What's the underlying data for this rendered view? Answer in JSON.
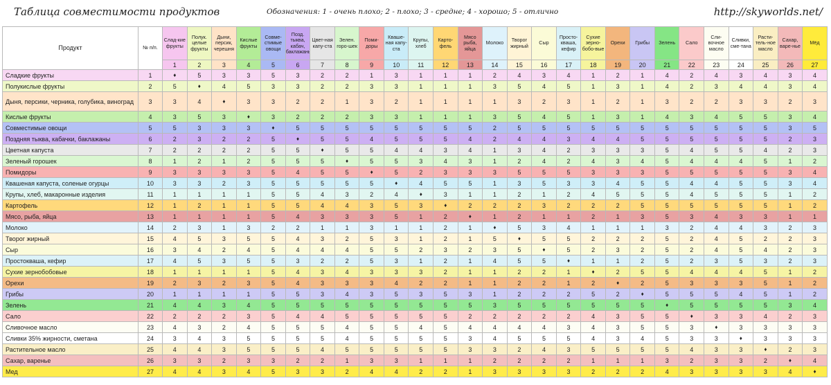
{
  "header": {
    "title": "Таблица совместимости продуктов",
    "legend": "Обозначения: 1 - очень плохо; 2 - плохо; 3 - средне; 4 - хорошо; 5 - отлично",
    "url": "http://skyworlds.net/"
  },
  "table": {
    "product_header": "Продукт",
    "num_header": "№ п/п.",
    "columns": [
      {
        "label": "Слад-кие фрукты",
        "num": "1",
        "color": "#f6c6ef"
      },
      {
        "label": "Полук. целые фрукты",
        "num": "2",
        "color": "#eef7c2"
      },
      {
        "label": "Дыни, персик, черешня",
        "num": "3",
        "color": "#ffe3c7"
      },
      {
        "label": "Кислые фрукты",
        "num": "4",
        "color": "#b3ec97"
      },
      {
        "label": "Совме-стимые овощи",
        "num": "5",
        "color": "#aab9f4"
      },
      {
        "label": "Позд. тыква, кабач, баклажаны",
        "num": "6",
        "color": "#c8a7f2"
      },
      {
        "label": "Цвет-ная капу-ста",
        "num": "7",
        "color": "#e6e6e6"
      },
      {
        "label": "Зелен. горо-шек",
        "num": "8",
        "color": "#d7f6cd"
      },
      {
        "label": "Поми-доры",
        "num": "9",
        "color": "#f7a8a8"
      },
      {
        "label": "Кваше-ная капу-ста",
        "num": "10",
        "color": "#c9ecf8"
      },
      {
        "label": "Крупы, хлеб",
        "num": "11",
        "color": "#ddf5f0"
      },
      {
        "label": "Карто-фель",
        "num": "12",
        "color": "#ffd774"
      },
      {
        "label": "Мясо рыба, яйца",
        "num": "13",
        "color": "#e49797"
      },
      {
        "label": "Молоко",
        "num": "14",
        "color": "#def2fb"
      },
      {
        "label": "Творог жирный",
        "num": "15",
        "color": "#fff4d6"
      },
      {
        "label": "Сыр",
        "num": "16",
        "color": "#fbfbd7"
      },
      {
        "label": "Просто-кваша, кефир",
        "num": "17",
        "color": "#d9f1f7"
      },
      {
        "label": "Сухие зерно-бобо-вые",
        "num": "18",
        "color": "#f6f49d"
      },
      {
        "label": "Орехи",
        "num": "19",
        "color": "#f3b67d"
      },
      {
        "label": "Грибы",
        "num": "20",
        "color": "#c9c6f4"
      },
      {
        "label": "Зелень",
        "num": "21",
        "color": "#85e585"
      },
      {
        "label": "Сало",
        "num": "22",
        "color": "#fbcaca"
      },
      {
        "label": "Сли-вочное масло",
        "num": "23",
        "color": "#fdfdf2"
      },
      {
        "label": "Сливки, сме-тана",
        "num": "24",
        "color": "#ffffff"
      },
      {
        "label": "Расти-тель-ное масло",
        "num": "25",
        "color": "#faeec3"
      },
      {
        "label": "Сахар, варе-нье",
        "num": "26",
        "color": "#f3b9b9"
      },
      {
        "label": "Мёд",
        "num": "27",
        "color": "#ffeb3b"
      }
    ],
    "rows": [
      {
        "name": "Сладкие фрукты",
        "num": "1",
        "color": "#f8d8f3",
        "vals": [
          "♦",
          "5",
          "3",
          "3",
          "5",
          "3",
          "2",
          "2",
          "1",
          "3",
          "1",
          "1",
          "1",
          "2",
          "4",
          "3",
          "4",
          "1",
          "2",
          "1",
          "4",
          "2",
          "4",
          "3",
          "4",
          "3",
          "4"
        ]
      },
      {
        "name": "Полукислые фрукты",
        "num": "2",
        "color": "#eff8c8",
        "vals": [
          "5",
          "♦",
          "4",
          "5",
          "3",
          "3",
          "2",
          "2",
          "3",
          "3",
          "1",
          "1",
          "1",
          "3",
          "5",
          "4",
          "5",
          "1",
          "3",
          "1",
          "4",
          "2",
          "3",
          "4",
          "4",
          "3",
          "4"
        ]
      },
      {
        "name": "Дыня, персики, черника, голубика, виноград",
        "num": "3",
        "color": "#ffe4c9",
        "vals": [
          "3",
          "4",
          "♦",
          "3",
          "3",
          "2",
          "2",
          "1",
          "3",
          "2",
          "1",
          "1",
          "1",
          "1",
          "3",
          "2",
          "3",
          "1",
          "2",
          "1",
          "3",
          "2",
          "2",
          "3",
          "3",
          "2",
          "3"
        ],
        "tall": true
      },
      {
        "name": "Кислые фрукты",
        "num": "4",
        "color": "#c5efad",
        "vals": [
          "3",
          "5",
          "3",
          "♦",
          "3",
          "2",
          "2",
          "2",
          "3",
          "3",
          "1",
          "1",
          "1",
          "3",
          "5",
          "4",
          "5",
          "1",
          "3",
          "1",
          "4",
          "3",
          "4",
          "5",
          "5",
          "3",
          "4"
        ]
      },
      {
        "name": "Совместимые овощи",
        "num": "5",
        "color": "#b4c1f5",
        "vals": [
          "5",
          "3",
          "3",
          "3",
          "♦",
          "5",
          "5",
          "5",
          "5",
          "5",
          "5",
          "5",
          "5",
          "2",
          "5",
          "5",
          "5",
          "5",
          "5",
          "5",
          "5",
          "5",
          "5",
          "5",
          "5",
          "3",
          "5"
        ]
      },
      {
        "name": "Поздняя тыква, кабачки, баклажаны",
        "num": "6",
        "color": "#cdb0f3",
        "vals": [
          "2",
          "3",
          "2",
          "2",
          "5",
          "♦",
          "5",
          "5",
          "4",
          "5",
          "5",
          "5",
          "4",
          "2",
          "4",
          "4",
          "3",
          "4",
          "4",
          "5",
          "5",
          "5",
          "5",
          "5",
          "5",
          "2",
          "3"
        ]
      },
      {
        "name": "Цветная капуста",
        "num": "7",
        "color": "#e9e9e9",
        "vals": [
          "2",
          "2",
          "2",
          "2",
          "5",
          "5",
          "♦",
          "5",
          "5",
          "4",
          "4",
          "3",
          "4",
          "1",
          "3",
          "4",
          "2",
          "3",
          "3",
          "3",
          "5",
          "4",
          "5",
          "5",
          "4",
          "2",
          "3"
        ]
      },
      {
        "name": "Зеленый горошек",
        "num": "8",
        "color": "#daf6d1",
        "vals": [
          "1",
          "2",
          "1",
          "2",
          "5",
          "5",
          "5",
          "♦",
          "5",
          "5",
          "3",
          "4",
          "3",
          "1",
          "2",
          "4",
          "2",
          "4",
          "3",
          "4",
          "5",
          "4",
          "4",
          "4",
          "5",
          "1",
          "2"
        ]
      },
      {
        "name": "Помидоры",
        "num": "9",
        "color": "#f8b2b2",
        "vals": [
          "3",
          "3",
          "3",
          "3",
          "5",
          "4",
          "5",
          "5",
          "♦",
          "5",
          "2",
          "3",
          "3",
          "3",
          "5",
          "5",
          "5",
          "3",
          "3",
          "3",
          "5",
          "5",
          "5",
          "5",
          "5",
          "3",
          "4"
        ]
      },
      {
        "name": "Квашеная капуста, соленые огурцы",
        "num": "10",
        "color": "#cfeef8",
        "vals": [
          "3",
          "3",
          "2",
          "3",
          "5",
          "5",
          "5",
          "5",
          "5",
          "♦",
          "4",
          "5",
          "5",
          "1",
          "3",
          "5",
          "3",
          "3",
          "4",
          "5",
          "5",
          "4",
          "4",
          "5",
          "5",
          "3",
          "4"
        ]
      },
      {
        "name": "Крупы, хлеб, макаронные изделия",
        "num": "11",
        "color": "#e1f6f1",
        "vals": [
          "1",
          "1",
          "1",
          "1",
          "5",
          "5",
          "4",
          "3",
          "2",
          "4",
          "♦",
          "3",
          "1",
          "1",
          "2",
          "1",
          "2",
          "4",
          "5",
          "5",
          "5",
          "4",
          "5",
          "5",
          "5",
          "1",
          "2"
        ]
      },
      {
        "name": "Картофель",
        "num": "12",
        "color": "#ffd97c",
        "vals": [
          "1",
          "2",
          "1",
          "1",
          "5",
          "5",
          "4",
          "4",
          "3",
          "5",
          "3",
          "♦",
          "2",
          "2",
          "2",
          "3",
          "2",
          "2",
          "2",
          "5",
          "5",
          "5",
          "5",
          "5",
          "5",
          "1",
          "2"
        ]
      },
      {
        "name": "Мясо, рыба, яйца",
        "num": "13",
        "color": "#e8a2a2",
        "vals": [
          "1",
          "1",
          "1",
          "1",
          "5",
          "4",
          "3",
          "3",
          "3",
          "5",
          "1",
          "2",
          "♦",
          "1",
          "2",
          "1",
          "1",
          "2",
          "1",
          "3",
          "5",
          "3",
          "4",
          "3",
          "3",
          "1",
          "1"
        ]
      },
      {
        "name": "Молоко",
        "num": "14",
        "color": "#e2f3fb",
        "vals": [
          "2",
          "3",
          "1",
          "3",
          "2",
          "2",
          "1",
          "1",
          "3",
          "1",
          "1",
          "2",
          "1",
          "♦",
          "5",
          "3",
          "4",
          "1",
          "1",
          "1",
          "3",
          "2",
          "4",
          "4",
          "3",
          "2",
          "3"
        ]
      },
      {
        "name": "Творог жирный",
        "num": "15",
        "color": "#fff5da",
        "vals": [
          "4",
          "5",
          "3",
          "5",
          "5",
          "4",
          "3",
          "2",
          "5",
          "3",
          "1",
          "2",
          "1",
          "5",
          "♦",
          "5",
          "5",
          "2",
          "2",
          "2",
          "5",
          "2",
          "4",
          "5",
          "2",
          "2",
          "3"
        ]
      },
      {
        "name": "Сыр",
        "num": "16",
        "color": "#fbfbdb",
        "vals": [
          "3",
          "4",
          "2",
          "4",
          "5",
          "4",
          "4",
          "4",
          "5",
          "5",
          "2",
          "3",
          "2",
          "3",
          "5",
          "♦",
          "5",
          "2",
          "3",
          "2",
          "5",
          "2",
          "4",
          "5",
          "4",
          "2",
          "3"
        ]
      },
      {
        "name": "Простокваша, кефир",
        "num": "17",
        "color": "#dcf2f8",
        "vals": [
          "4",
          "5",
          "3",
          "5",
          "5",
          "3",
          "2",
          "2",
          "5",
          "3",
          "1",
          "2",
          "1",
          "4",
          "5",
          "5",
          "♦",
          "1",
          "1",
          "2",
          "5",
          "2",
          "3",
          "5",
          "3",
          "2",
          "3"
        ]
      },
      {
        "name": "Сухие зернобобовые",
        "num": "18",
        "color": "#f6f4a4",
        "vals": [
          "1",
          "1",
          "1",
          "1",
          "5",
          "4",
          "3",
          "4",
          "3",
          "3",
          "3",
          "2",
          "1",
          "1",
          "2",
          "2",
          "1",
          "♦",
          "2",
          "5",
          "5",
          "4",
          "4",
          "4",
          "5",
          "1",
          "2"
        ]
      },
      {
        "name": "Орехи",
        "num": "19",
        "color": "#f4bb86",
        "vals": [
          "2",
          "3",
          "2",
          "3",
          "5",
          "4",
          "3",
          "3",
          "3",
          "4",
          "2",
          "2",
          "1",
          "1",
          "2",
          "2",
          "1",
          "2",
          "♦",
          "2",
          "5",
          "3",
          "3",
          "3",
          "5",
          "1",
          "2"
        ]
      },
      {
        "name": "Грибы",
        "num": "20",
        "color": "#cdcaf5",
        "vals": [
          "1",
          "1",
          "1",
          "1",
          "5",
          "5",
          "3",
          "4",
          "3",
          "5",
          "3",
          "5",
          "3",
          "1",
          "2",
          "2",
          "2",
          "5",
          "2",
          "♦",
          "5",
          "5",
          "5",
          "4",
          "5",
          "1",
          "2"
        ]
      },
      {
        "name": "Зелень",
        "num": "21",
        "color": "#93e893",
        "vals": [
          "4",
          "4",
          "3",
          "4",
          "5",
          "5",
          "5",
          "5",
          "5",
          "5",
          "5",
          "5",
          "5",
          "3",
          "5",
          "5",
          "5",
          "5",
          "5",
          "5",
          "♦",
          "5",
          "5",
          "5",
          "5",
          "3",
          "4"
        ]
      },
      {
        "name": "Сало",
        "num": "22",
        "color": "#fbcfcf",
        "vals": [
          "2",
          "2",
          "2",
          "3",
          "5",
          "4",
          "4",
          "5",
          "5",
          "5",
          "5",
          "5",
          "2",
          "2",
          "2",
          "2",
          "2",
          "4",
          "3",
          "5",
          "5",
          "♦",
          "3",
          "3",
          "4",
          "2",
          "3"
        ]
      },
      {
        "name": "Сливочное масло",
        "num": "23",
        "color": "#fdfdf4",
        "vals": [
          "4",
          "3",
          "2",
          "4",
          "5",
          "5",
          "5",
          "4",
          "5",
          "5",
          "4",
          "5",
          "4",
          "4",
          "4",
          "4",
          "3",
          "4",
          "3",
          "5",
          "5",
          "3",
          "♦",
          "3",
          "3",
          "3",
          "3"
        ]
      },
      {
        "name": "Сливки 35% жирности, сметана",
        "num": "24",
        "color": "#ffffff",
        "vals": [
          "3",
          "4",
          "3",
          "5",
          "5",
          "5",
          "5",
          "4",
          "5",
          "5",
          "5",
          "5",
          "3",
          "4",
          "5",
          "5",
          "5",
          "4",
          "3",
          "4",
          "5",
          "3",
          "3",
          "♦",
          "3",
          "3",
          "3"
        ]
      },
      {
        "name": "Растительное масло",
        "num": "25",
        "color": "#faefc7",
        "vals": [
          "4",
          "4",
          "3",
          "5",
          "5",
          "5",
          "4",
          "5",
          "5",
          "5",
          "5",
          "5",
          "3",
          "3",
          "2",
          "4",
          "3",
          "5",
          "5",
          "5",
          "5",
          "4",
          "3",
          "3",
          "♦",
          "2",
          "3"
        ]
      },
      {
        "name": "Сахар, варенье",
        "num": "26",
        "color": "#f4bfbf",
        "vals": [
          "3",
          "3",
          "2",
          "3",
          "3",
          "2",
          "2",
          "1",
          "3",
          "3",
          "1",
          "1",
          "1",
          "2",
          "2",
          "2",
          "2",
          "1",
          "1",
          "1",
          "3",
          "2",
          "3",
          "3",
          "2",
          "♦",
          "4"
        ]
      },
      {
        "name": "Мед",
        "num": "27",
        "color": "#ffec4a",
        "vals": [
          "4",
          "4",
          "3",
          "4",
          "5",
          "3",
          "3",
          "2",
          "4",
          "4",
          "2",
          "2",
          "1",
          "3",
          "3",
          "3",
          "3",
          "2",
          "2",
          "2",
          "4",
          "3",
          "3",
          "3",
          "3",
          "4",
          "♦"
        ]
      }
    ]
  }
}
